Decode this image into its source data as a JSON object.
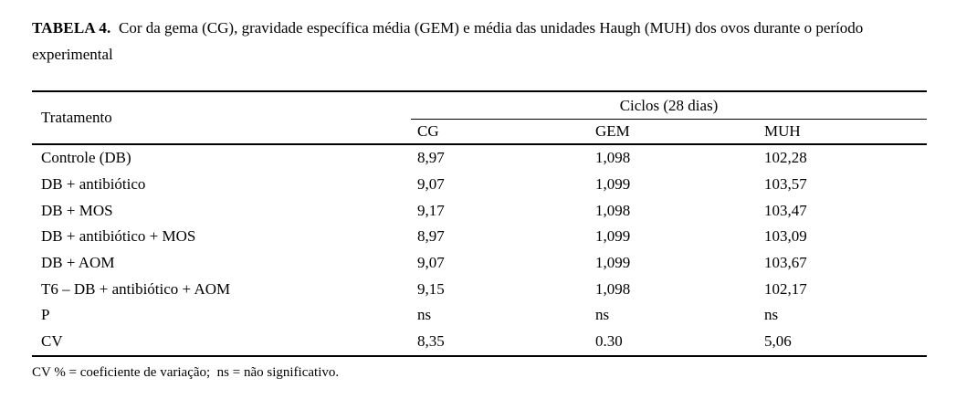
{
  "caption": {
    "label": "TABELA 4.",
    "text": "  Cor da gema (CG), gravidade específica média (GEM) e média das unidades Haugh (MUH) dos ovos durante o período experimental"
  },
  "table": {
    "row_header": "Tratamento",
    "group_header": "Ciclos (28 dias)",
    "columns": [
      "CG",
      "GEM",
      "MUH"
    ],
    "rows": [
      [
        "Controle (DB)",
        "8,97",
        "1,098",
        "102,28"
      ],
      [
        "DB + antibiótico",
        "9,07",
        "1,099",
        "103,57"
      ],
      [
        "DB + MOS",
        "9,17",
        "1,098",
        "103,47"
      ],
      [
        "DB + antibiótico + MOS",
        "8,97",
        "1,099",
        "103,09"
      ],
      [
        "DB + AOM",
        "9,07",
        "1,099",
        "103,67"
      ],
      [
        "T6 – DB + antibiótico + AOM",
        "9,15",
        "1,098",
        "102,17"
      ],
      [
        "P",
        "ns",
        "ns",
        "ns"
      ],
      [
        "CV",
        "8,35",
        "0.30",
        "5,06"
      ]
    ]
  },
  "footnote": "CV % = coeficiente de variação;  ns = não significativo.",
  "chart_data": {
    "type": "table",
    "title": "TABELA 4. Cor da gema (CG), gravidade específica média (GEM) e média das unidades Haugh (MUH) dos ovos durante o período experimental",
    "column_group_header": "Ciclos (28 dias)",
    "columns": [
      "Tratamento",
      "CG",
      "GEM",
      "MUH"
    ],
    "rows": [
      {
        "tratamento": "Controle (DB)",
        "CG": "8,97",
        "GEM": "1,098",
        "MUH": "102,28"
      },
      {
        "tratamento": "DB + antibiótico",
        "CG": "9,07",
        "GEM": "1,099",
        "MUH": "103,57"
      },
      {
        "tratamento": "DB + MOS",
        "CG": "9,17",
        "GEM": "1,098",
        "MUH": "103,47"
      },
      {
        "tratamento": "DB + antibiótico + MOS",
        "CG": "8,97",
        "GEM": "1,099",
        "MUH": "103,09"
      },
      {
        "tratamento": "DB + AOM",
        "CG": "9,07",
        "GEM": "1,099",
        "MUH": "103,67"
      },
      {
        "tratamento": "T6 – DB + antibiótico + AOM",
        "CG": "9,15",
        "GEM": "1,098",
        "MUH": "102,17"
      },
      {
        "tratamento": "P",
        "CG": "ns",
        "GEM": "ns",
        "MUH": "ns"
      },
      {
        "tratamento": "CV",
        "CG": "8,35",
        "GEM": "0.30",
        "MUH": "5,06"
      }
    ],
    "footnote": "CV % = coeficiente de variação;  ns = não significativo."
  }
}
